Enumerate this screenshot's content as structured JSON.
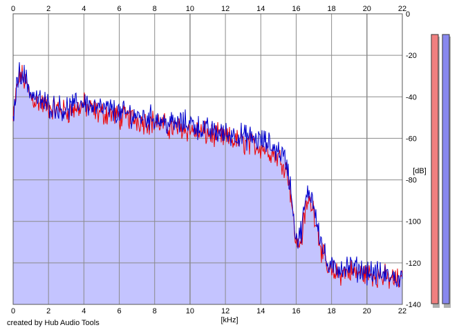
{
  "footer": "created by Hub Audio Tools",
  "chart_data": {
    "type": "area",
    "xlabel": "[kHz]",
    "ylabel": "[dB]",
    "xlim": [
      0,
      22
    ],
    "ylim": [
      -140,
      0
    ],
    "x_ticks": [
      0,
      2,
      4,
      6,
      8,
      10,
      12,
      14,
      16,
      18,
      20,
      22
    ],
    "y_ticks": [
      0,
      -20,
      -40,
      -60,
      -80,
      -100,
      -120,
      -140
    ],
    "grid": true,
    "colors": {
      "fill": "#c4c4ff",
      "left": "#ee0000",
      "right": "#0000cc",
      "meter_left": "#f08080",
      "meter_right": "#8888ee"
    },
    "series": [
      {
        "values_kHz_dB": [
          [
            0,
            -52
          ],
          [
            0.2,
            -36
          ],
          [
            0.4,
            -29
          ],
          [
            0.7,
            -33
          ],
          [
            1,
            -40
          ],
          [
            1.5,
            -43
          ],
          [
            2,
            -45
          ],
          [
            2.5,
            -46
          ],
          [
            3,
            -47
          ],
          [
            3.5,
            -46
          ],
          [
            4,
            -44
          ],
          [
            4.5,
            -47
          ],
          [
            5,
            -48
          ],
          [
            5.5,
            -48
          ],
          [
            6,
            -50
          ],
          [
            6.5,
            -50
          ],
          [
            7,
            -51
          ],
          [
            7.5,
            -52
          ],
          [
            8,
            -52
          ],
          [
            8.5,
            -54
          ],
          [
            9,
            -55
          ],
          [
            9.5,
            -55
          ],
          [
            10,
            -56
          ],
          [
            10.5,
            -57
          ],
          [
            11,
            -58
          ],
          [
            11.5,
            -59
          ],
          [
            12,
            -60
          ],
          [
            12.5,
            -61
          ],
          [
            13,
            -62
          ],
          [
            13.5,
            -63
          ],
          [
            14,
            -64
          ],
          [
            14.5,
            -66
          ],
          [
            15,
            -69
          ],
          [
            15.3,
            -72
          ],
          [
            15.5,
            -76
          ],
          [
            15.7,
            -86
          ],
          [
            15.9,
            -105
          ],
          [
            16.1,
            -112
          ],
          [
            16.3,
            -108
          ],
          [
            16.5,
            -96
          ],
          [
            16.7,
            -90
          ],
          [
            16.9,
            -92
          ],
          [
            17.1,
            -98
          ],
          [
            17.3,
            -108
          ],
          [
            17.5,
            -116
          ],
          [
            17.8,
            -124
          ],
          [
            18,
            -125
          ],
          [
            18.5,
            -125
          ],
          [
            19,
            -124
          ],
          [
            19.5,
            -125
          ],
          [
            20,
            -125
          ],
          [
            20.5,
            -126
          ],
          [
            21,
            -127
          ],
          [
            21.5,
            -128
          ],
          [
            22,
            -129
          ]
        ]
      },
      {
        "values_kHz_dB": [
          [
            0,
            -50
          ],
          [
            0.2,
            -34
          ],
          [
            0.4,
            -27
          ],
          [
            0.7,
            -31
          ],
          [
            1,
            -38
          ],
          [
            1.5,
            -42
          ],
          [
            2,
            -44
          ],
          [
            2.5,
            -45
          ],
          [
            3,
            -46
          ],
          [
            3.5,
            -44
          ],
          [
            4,
            -42
          ],
          [
            4.5,
            -45
          ],
          [
            5,
            -46
          ],
          [
            5.5,
            -46
          ],
          [
            6,
            -48
          ],
          [
            6.5,
            -48
          ],
          [
            7,
            -49
          ],
          [
            7.5,
            -50
          ],
          [
            8,
            -50
          ],
          [
            8.5,
            -52
          ],
          [
            9,
            -53
          ],
          [
            9.5,
            -53
          ],
          [
            10,
            -52
          ],
          [
            10.5,
            -55
          ],
          [
            11,
            -56
          ],
          [
            11.5,
            -57
          ],
          [
            12,
            -58
          ],
          [
            12.5,
            -58
          ],
          [
            13,
            -59
          ],
          [
            13.5,
            -60
          ],
          [
            14,
            -61
          ],
          [
            14.5,
            -63
          ],
          [
            15,
            -66
          ],
          [
            15.3,
            -68
          ],
          [
            15.5,
            -74
          ],
          [
            15.7,
            -84
          ],
          [
            15.9,
            -102
          ],
          [
            16.1,
            -110
          ],
          [
            16.3,
            -104
          ],
          [
            16.5,
            -92
          ],
          [
            16.7,
            -86
          ],
          [
            16.9,
            -88
          ],
          [
            17.1,
            -95
          ],
          [
            17.3,
            -105
          ],
          [
            17.5,
            -113
          ],
          [
            17.8,
            -122
          ],
          [
            18,
            -123
          ],
          [
            18.5,
            -122
          ],
          [
            19,
            -122
          ],
          [
            19.5,
            -123
          ],
          [
            20,
            -124
          ],
          [
            20.5,
            -125
          ],
          [
            21,
            -126
          ],
          [
            21.5,
            -127
          ],
          [
            22,
            -128
          ]
        ]
      }
    ],
    "meters": {
      "left_dB": 0,
      "right_dB": 0
    }
  }
}
